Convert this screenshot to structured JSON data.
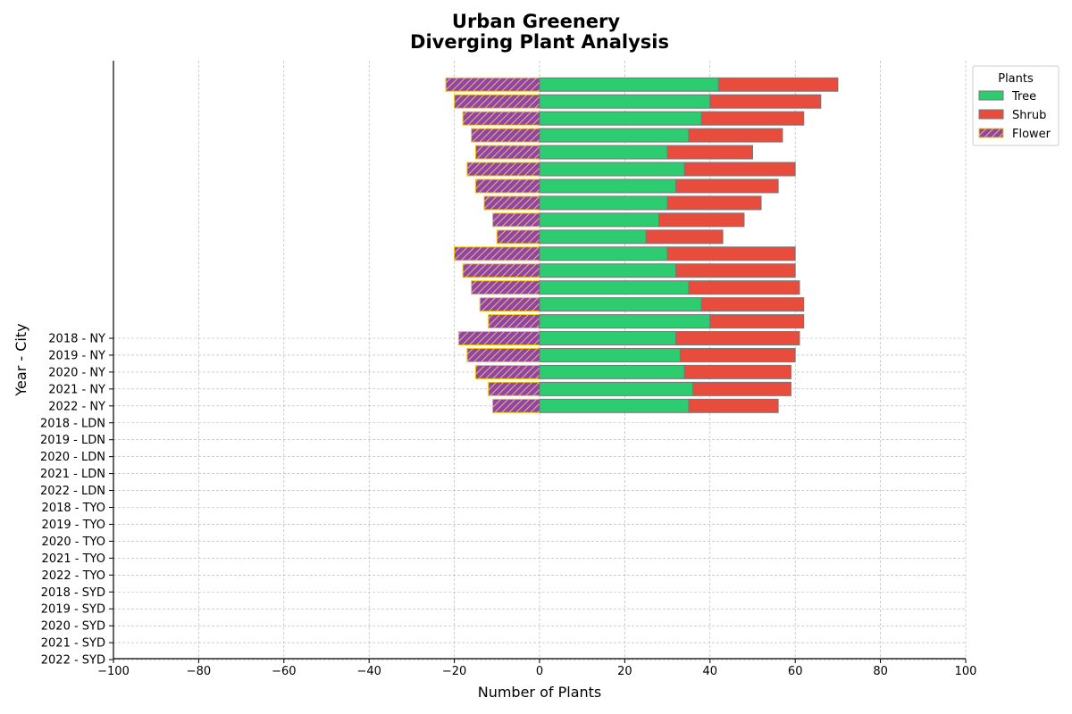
{
  "chart_data": {
    "type": "bar",
    "orientation": "horizontal",
    "stacked": true,
    "diverging": true,
    "title_line1": "Urban Greenery",
    "title_line2": "Diverging Plant Analysis",
    "xlabel": "Number of Plants",
    "ylabel": "Year - City",
    "xlim": [
      -100,
      100
    ],
    "xticks": [
      "−100",
      "−80",
      "−60",
      "−40",
      "−20",
      "0",
      "20",
      "40",
      "60",
      "80",
      "100"
    ],
    "grid": true,
    "legend": {
      "title": "Plants",
      "placement": "top-right"
    },
    "categories": [
      "2018 - NY",
      "2019 - NY",
      "2020 - NY",
      "2021 - NY",
      "2022 - NY",
      "2018 - LDN",
      "2019 - LDN",
      "2020 - LDN",
      "2021 - LDN",
      "2022 - LDN",
      "2018 - TYO",
      "2019 - TYO",
      "2020 - TYO",
      "2021 - TYO",
      "2022 - TYO",
      "2018 - SYD",
      "2019 - SYD",
      "2020 - SYD",
      "2021 - SYD",
      "2022 - SYD"
    ],
    "series": [
      {
        "name": "Tree",
        "color": "#2ecc71",
        "values": [
          35,
          36,
          34,
          33,
          32,
          40,
          38,
          35,
          32,
          30,
          25,
          28,
          30,
          32,
          34,
          30,
          35,
          38,
          40,
          42
        ]
      },
      {
        "name": "Shrub",
        "color": "#e74c3c",
        "values": [
          21,
          23,
          25,
          27,
          29,
          22,
          24,
          26,
          28,
          30,
          18,
          20,
          22,
          24,
          26,
          20,
          22,
          24,
          26,
          28
        ]
      },
      {
        "name": "Flower",
        "color": "#8e44ad",
        "edge_color": "#f1c40f",
        "hatch": "diagonal",
        "values": [
          -11,
          -12,
          -15,
          -17,
          -19,
          -12,
          -14,
          -16,
          -18,
          -20,
          -10,
          -11,
          -13,
          -15,
          -17,
          -15,
          -16,
          -18,
          -20,
          -22
        ]
      }
    ]
  }
}
